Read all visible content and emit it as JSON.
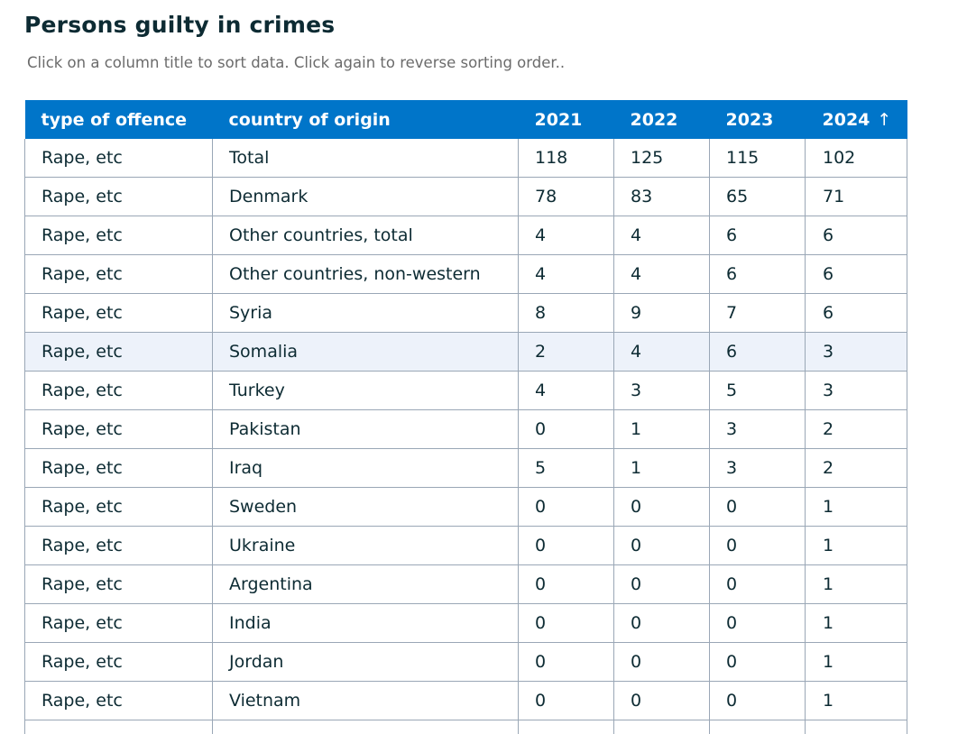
{
  "header": {
    "title": "Persons guilty in crimes",
    "subtitle": "Click on a column title to sort data. Click again to reverse sorting order.."
  },
  "colors": {
    "header_bg": "#0075c9",
    "header_text": "#ffffff",
    "row_highlight": "#edf2fa",
    "grid": "#9aa7b6",
    "text": "#0d2b33"
  },
  "table": {
    "columns": [
      {
        "label": "type of offence",
        "sort_indicator": ""
      },
      {
        "label": "country of origin",
        "sort_indicator": ""
      },
      {
        "label": "2021",
        "sort_indicator": ""
      },
      {
        "label": "2022",
        "sort_indicator": ""
      },
      {
        "label": "2023",
        "sort_indicator": ""
      },
      {
        "label": "2024",
        "sort_indicator": "↑"
      }
    ],
    "sorted_column": "2024",
    "sort_direction": "descending",
    "highlighted_row": 5,
    "rows": [
      {
        "offence": "Rape, etc",
        "country": "Total",
        "y2021": "118",
        "y2022": "125",
        "y2023": "115",
        "y2024": "102"
      },
      {
        "offence": "Rape, etc",
        "country": "Denmark",
        "y2021": "78",
        "y2022": "83",
        "y2023": "65",
        "y2024": "71"
      },
      {
        "offence": "Rape, etc",
        "country": "Other countries, total",
        "y2021": "4",
        "y2022": "4",
        "y2023": "6",
        "y2024": "6"
      },
      {
        "offence": "Rape, etc",
        "country": "Other countries, non-western",
        "y2021": "4",
        "y2022": "4",
        "y2023": "6",
        "y2024": "6"
      },
      {
        "offence": "Rape, etc",
        "country": "Syria",
        "y2021": "8",
        "y2022": "9",
        "y2023": "7",
        "y2024": "6"
      },
      {
        "offence": "Rape, etc",
        "country": "Somalia",
        "y2021": "2",
        "y2022": "4",
        "y2023": "6",
        "y2024": "3"
      },
      {
        "offence": "Rape, etc",
        "country": "Turkey",
        "y2021": "4",
        "y2022": "3",
        "y2023": "5",
        "y2024": "3"
      },
      {
        "offence": "Rape, etc",
        "country": "Pakistan",
        "y2021": "0",
        "y2022": "1",
        "y2023": "3",
        "y2024": "2"
      },
      {
        "offence": "Rape, etc",
        "country": "Iraq",
        "y2021": "5",
        "y2022": "1",
        "y2023": "3",
        "y2024": "2"
      },
      {
        "offence": "Rape, etc",
        "country": "Sweden",
        "y2021": "0",
        "y2022": "0",
        "y2023": "0",
        "y2024": "1"
      },
      {
        "offence": "Rape, etc",
        "country": "Ukraine",
        "y2021": "0",
        "y2022": "0",
        "y2023": "0",
        "y2024": "1"
      },
      {
        "offence": "Rape, etc",
        "country": "Argentina",
        "y2021": "0",
        "y2022": "0",
        "y2023": "0",
        "y2024": "1"
      },
      {
        "offence": "Rape, etc",
        "country": "India",
        "y2021": "0",
        "y2022": "0",
        "y2023": "0",
        "y2024": "1"
      },
      {
        "offence": "Rape, etc",
        "country": "Jordan",
        "y2021": "0",
        "y2022": "0",
        "y2023": "0",
        "y2024": "1"
      },
      {
        "offence": "Rape, etc",
        "country": "Vietnam",
        "y2021": "0",
        "y2022": "0",
        "y2023": "0",
        "y2024": "1"
      }
    ]
  }
}
